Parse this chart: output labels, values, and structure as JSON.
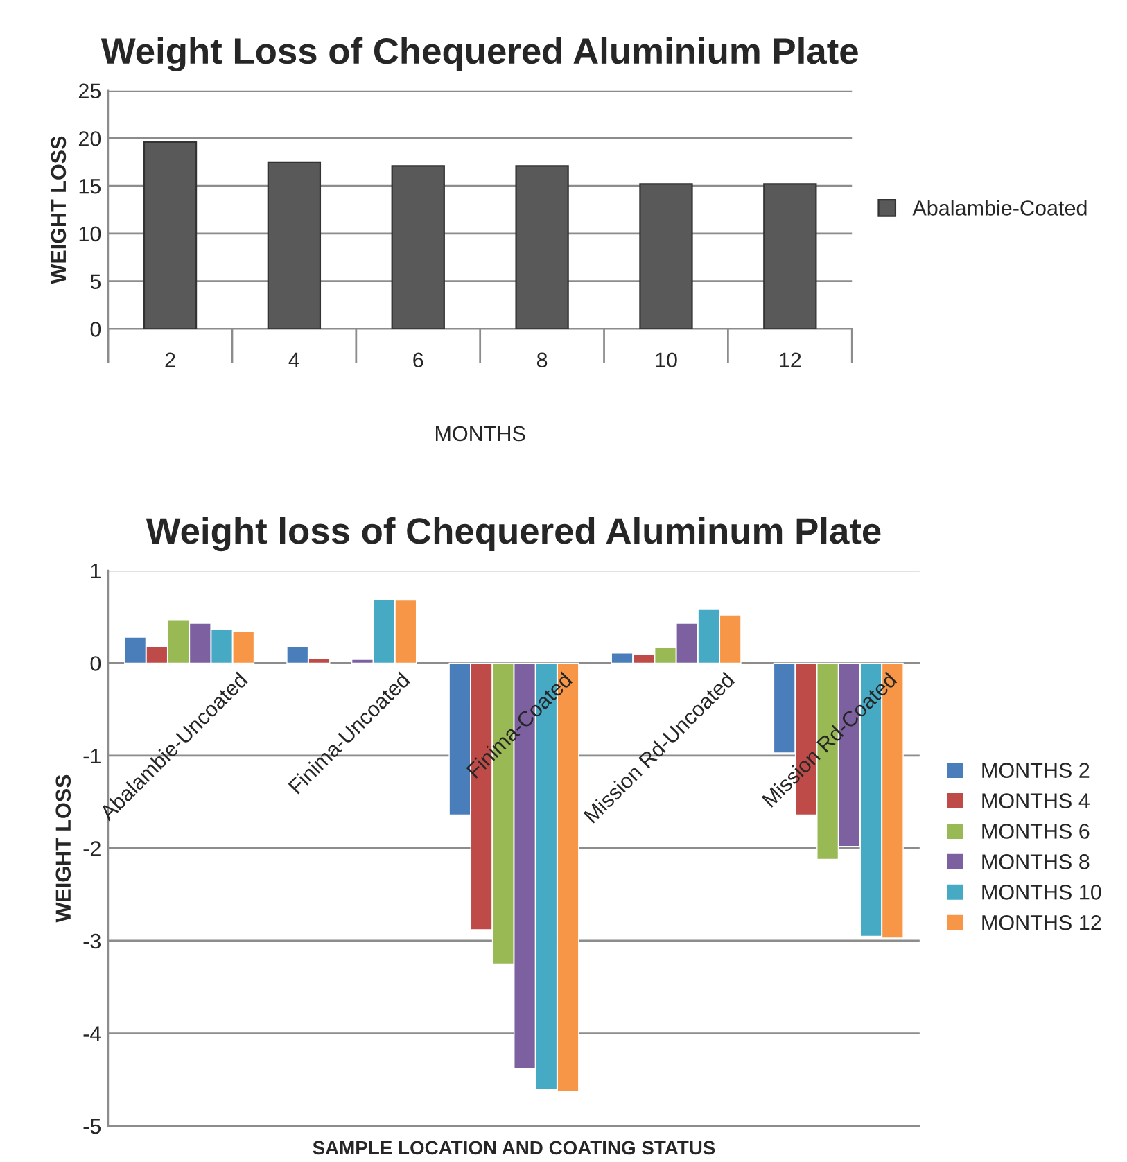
{
  "chart_data": [
    {
      "type": "bar",
      "title": "Weight Loss of Chequered Aluminium Plate",
      "xlabel": "MONTHS",
      "ylabel": "WEIGHT LOSS",
      "categories": [
        "2",
        "4",
        "6",
        "8",
        "10",
        "12"
      ],
      "series": [
        {
          "name": "Abalambie-Coated",
          "color": "#595959",
          "values": [
            19.6,
            17.5,
            17.1,
            17.1,
            15.2,
            15.2
          ]
        }
      ],
      "ylim": [
        0,
        25
      ],
      "yticks": [
        0,
        5,
        10,
        15,
        20,
        25
      ],
      "grid": "y",
      "legend": "right"
    },
    {
      "type": "bar",
      "title": "Weight loss of Chequered Aluminum Plate",
      "xlabel": "SAMPLE LOCATION AND COATING STATUS",
      "ylabel": "WEIGHT LOSS",
      "categories": [
        "Abalambie-Uncoated",
        "Finima-Uncoated",
        "Finima-Coated",
        "Mission Rd-Uncoated",
        "Mission Rd-Coated"
      ],
      "series": [
        {
          "name": "MONTHS 2",
          "color": "#4a7ebb",
          "values": [
            0.28,
            0.18,
            -1.64,
            0.11,
            -0.97
          ]
        },
        {
          "name": "MONTHS 4",
          "color": "#be4b48",
          "values": [
            0.18,
            0.05,
            -2.88,
            0.09,
            -1.64
          ]
        },
        {
          "name": "MONTHS 6",
          "color": "#98b954",
          "values": [
            0.47,
            null,
            -3.25,
            0.17,
            -2.12
          ]
        },
        {
          "name": "MONTHS 8",
          "color": "#7d60a0",
          "values": [
            0.43,
            0.04,
            -4.38,
            0.43,
            -1.98
          ]
        },
        {
          "name": "MONTHS 10",
          "color": "#46aac5",
          "values": [
            0.36,
            0.69,
            -4.6,
            0.58,
            -2.95
          ]
        },
        {
          "name": "MONTHS 12",
          "color": "#f79646",
          "values": [
            0.34,
            0.68,
            -4.63,
            0.52,
            -2.97
          ]
        }
      ],
      "ylim": [
        -5,
        1
      ],
      "yticks": [
        -5,
        -4,
        -3,
        -2,
        -1,
        0,
        1
      ],
      "grid": "y",
      "legend": "right"
    }
  ]
}
